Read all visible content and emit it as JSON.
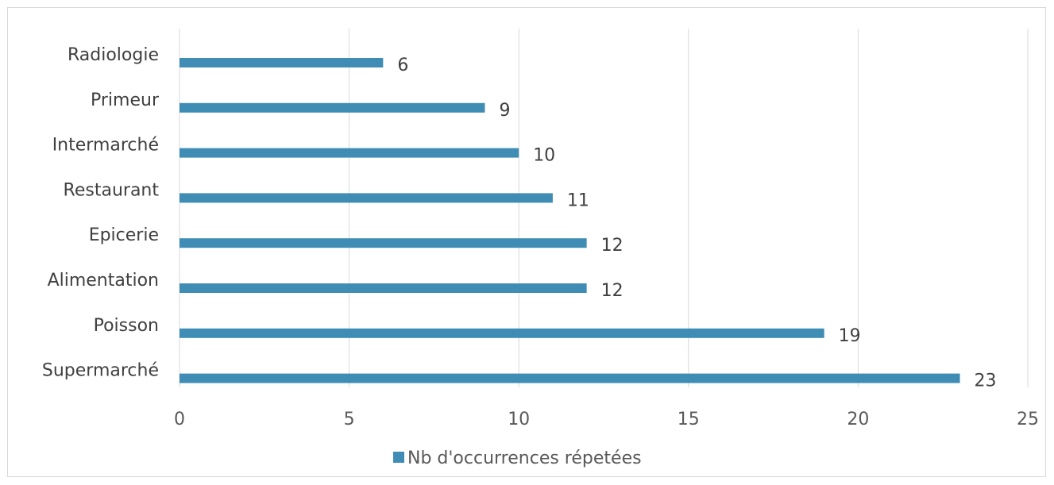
{
  "chart_data": {
    "type": "bar",
    "orientation": "horizontal",
    "categories": [
      "Radiologie",
      "Primeur",
      "Intermarché",
      "Restaurant",
      "Epicerie",
      "Alimentation",
      "Poisson",
      "Supermarché"
    ],
    "series": [
      {
        "name": "Nb d'occurrences répetées",
        "values": [
          6,
          9,
          10,
          11,
          12,
          12,
          19,
          23
        ],
        "color": "#3f8db5"
      }
    ],
    "x_ticks": [
      0,
      5,
      10,
      15,
      20,
      25
    ],
    "xlim": [
      0,
      25
    ],
    "grid": "vertical",
    "legend_position": "bottom"
  }
}
